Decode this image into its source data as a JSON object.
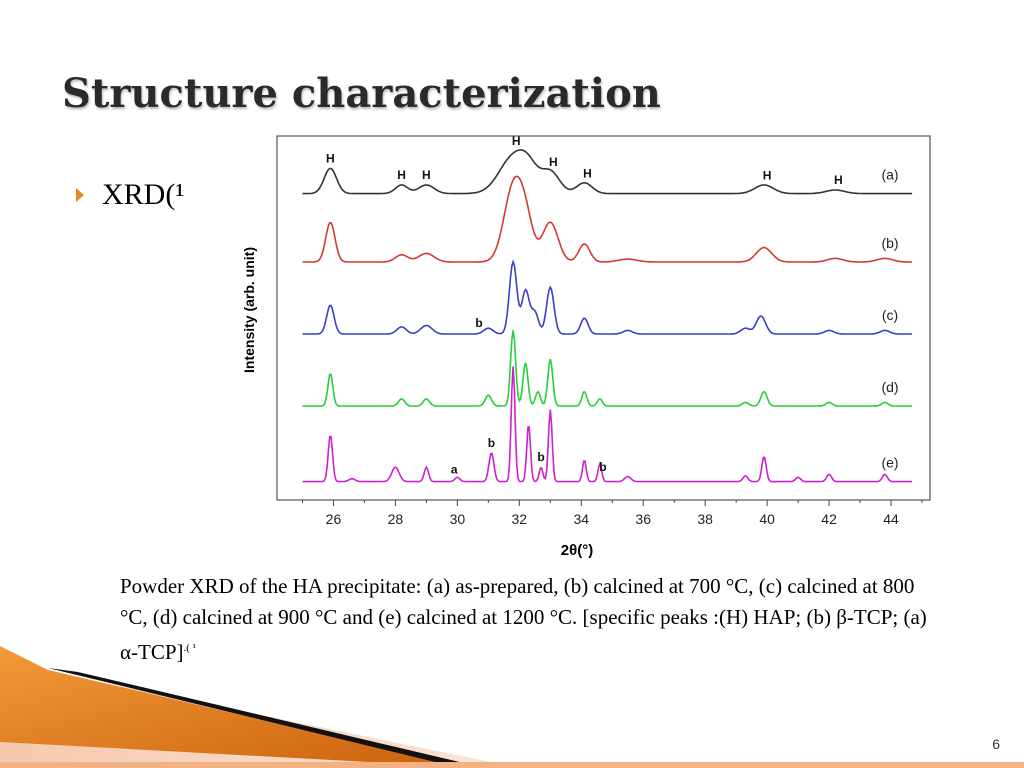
{
  "slide": {
    "title": "Structure characterization",
    "bullet": "XRD(¹",
    "caption": "Powder XRD of the HA precipitate: (a) as-prepared, (b) calcined at 700 °C, (c) calcined at 800 °C, (d) calcined at 900 °C and (e) calcined at 1200 °C. [specific peaks :(H) HAP; (b) β-TCP; (a) α-TCP]",
    "caption_ref": ".( ¹",
    "page_number": "6"
  },
  "colors": {
    "bullet_accent": "#e38a22",
    "banner_orange": "#e07b1f",
    "a": "#333333",
    "b": "#d43a2e",
    "c": "#3a3fc4",
    "d": "#26cf3c",
    "e": "#cc22cc"
  },
  "chart_data": {
    "type": "line",
    "xlabel": "2θ(°)",
    "ylabel": "Intensity (arb. unit)",
    "xlim": [
      24.5,
      45
    ],
    "xticks": [
      26,
      28,
      30,
      32,
      34,
      36,
      38,
      40,
      42,
      44
    ],
    "grid": false,
    "series": [
      {
        "name": "(a)",
        "color": "#333333",
        "baseline": 4.2,
        "peaks": [
          [
            25.9,
            0.35,
            0.2
          ],
          [
            28.2,
            0.12,
            0.2
          ],
          [
            29.0,
            0.12,
            0.25
          ],
          [
            31.8,
            0.5,
            0.45
          ],
          [
            32.3,
            0.25,
            0.3
          ],
          [
            33.0,
            0.3,
            0.3
          ],
          [
            34.1,
            0.15,
            0.25
          ],
          [
            39.9,
            0.12,
            0.3
          ],
          [
            42.2,
            0.05,
            0.3
          ]
        ],
        "labels": [
          [
            "H",
            25.9
          ],
          [
            "H",
            28.2
          ],
          [
            "H",
            29.0
          ],
          [
            "H",
            31.9
          ],
          [
            "H",
            33.1
          ],
          [
            "H",
            34.2
          ],
          [
            "H",
            40.0
          ],
          [
            "H",
            42.3
          ]
        ]
      },
      {
        "name": "(b)",
        "color": "#d43a2e",
        "baseline": 3.25,
        "peaks": [
          [
            25.9,
            0.55,
            0.15
          ],
          [
            28.2,
            0.1,
            0.2
          ],
          [
            29.0,
            0.12,
            0.25
          ],
          [
            31.8,
            1.0,
            0.3
          ],
          [
            32.2,
            0.5,
            0.25
          ],
          [
            33.0,
            0.55,
            0.25
          ],
          [
            34.1,
            0.25,
            0.18
          ],
          [
            35.5,
            0.04,
            0.3
          ],
          [
            39.9,
            0.2,
            0.25
          ],
          [
            42.2,
            0.05,
            0.25
          ],
          [
            43.8,
            0.05,
            0.25
          ]
        ],
        "labels": []
      },
      {
        "name": "(c)",
        "color": "#3a3fc4",
        "baseline": 2.25,
        "peaks": [
          [
            25.9,
            0.4,
            0.12
          ],
          [
            28.2,
            0.1,
            0.15
          ],
          [
            29.0,
            0.12,
            0.18
          ],
          [
            31.0,
            0.08,
            0.15
          ],
          [
            31.8,
            1.0,
            0.12
          ],
          [
            32.2,
            0.6,
            0.12
          ],
          [
            32.5,
            0.3,
            0.12
          ],
          [
            33.0,
            0.65,
            0.12
          ],
          [
            34.1,
            0.22,
            0.12
          ],
          [
            35.5,
            0.05,
            0.15
          ],
          [
            39.3,
            0.08,
            0.15
          ],
          [
            39.8,
            0.25,
            0.15
          ],
          [
            42.0,
            0.05,
            0.15
          ],
          [
            43.8,
            0.05,
            0.15
          ]
        ],
        "labels": [
          [
            "b",
            30.7
          ]
        ]
      },
      {
        "name": "(d)",
        "color": "#26cf3c",
        "baseline": 1.25,
        "peaks": [
          [
            25.9,
            0.45,
            0.08
          ],
          [
            28.2,
            0.1,
            0.1
          ],
          [
            29.0,
            0.1,
            0.1
          ],
          [
            31.0,
            0.15,
            0.1
          ],
          [
            31.8,
            1.05,
            0.08
          ],
          [
            32.2,
            0.6,
            0.08
          ],
          [
            32.6,
            0.2,
            0.08
          ],
          [
            33.0,
            0.65,
            0.08
          ],
          [
            34.1,
            0.2,
            0.08
          ],
          [
            34.6,
            0.1,
            0.08
          ],
          [
            39.3,
            0.05,
            0.1
          ],
          [
            39.9,
            0.2,
            0.1
          ],
          [
            42.0,
            0.05,
            0.1
          ],
          [
            43.8,
            0.05,
            0.1
          ]
        ],
        "labels": []
      },
      {
        "name": "(e)",
        "color": "#cc22cc",
        "baseline": 0.2,
        "peaks": [
          [
            25.9,
            0.65,
            0.07
          ],
          [
            26.6,
            0.04,
            0.1
          ],
          [
            28.0,
            0.2,
            0.12
          ],
          [
            29.0,
            0.2,
            0.07
          ],
          [
            30.0,
            0.06,
            0.08
          ],
          [
            31.1,
            0.4,
            0.08
          ],
          [
            31.8,
            1.6,
            0.06
          ],
          [
            32.3,
            0.8,
            0.06
          ],
          [
            32.7,
            0.2,
            0.06
          ],
          [
            33.0,
            1.0,
            0.06
          ],
          [
            34.1,
            0.3,
            0.06
          ],
          [
            34.6,
            0.25,
            0.06
          ],
          [
            35.5,
            0.07,
            0.1
          ],
          [
            39.3,
            0.08,
            0.08
          ],
          [
            39.9,
            0.35,
            0.07
          ],
          [
            41.0,
            0.06,
            0.08
          ],
          [
            42.0,
            0.1,
            0.08
          ],
          [
            43.8,
            0.1,
            0.08
          ]
        ],
        "labels": [
          [
            "a",
            29.9
          ],
          [
            "b",
            31.1
          ],
          [
            "b",
            32.7
          ],
          [
            "b",
            34.7
          ]
        ]
      }
    ]
  }
}
